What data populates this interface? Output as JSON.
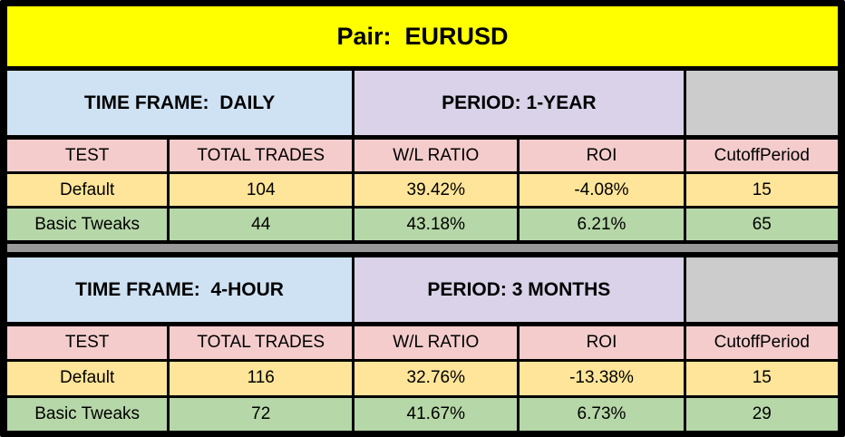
{
  "title": "Pair:  EURUSD",
  "colors": {
    "border": "#000000",
    "title_bg": "#ffff00",
    "timeframe_bg": "#cfe2f3",
    "period_bg": "#d9d2e9",
    "spacer_bg": "#cccccc",
    "header_bg": "#f4cccc",
    "row_default_bg": "#ffe599",
    "row_tweaks_bg": "#b6d7a8",
    "separator_bg": "#999999",
    "text": "#000000"
  },
  "sections": [
    {
      "time_frame_label": "TIME FRAME:  DAILY",
      "period_label": "PERIOD: 1-YEAR",
      "columns": [
        "TEST",
        "TOTAL TRADES",
        "W/L RATIO",
        "ROI",
        "CutoffPeriod"
      ],
      "rows": [
        {
          "test": "Default",
          "total_trades": "104",
          "wl_ratio": "39.42%",
          "roi": "-4.08%",
          "cutoff_period": "15"
        },
        {
          "test": "Basic Tweaks",
          "total_trades": "44",
          "wl_ratio": "43.18%",
          "roi": "6.21%",
          "cutoff_period": "65"
        }
      ]
    },
    {
      "time_frame_label": "TIME FRAME:  4-HOUR",
      "period_label": "PERIOD: 3 MONTHS",
      "columns": [
        "TEST",
        "TOTAL TRADES",
        "W/L RATIO",
        "ROI",
        "CutoffPeriod"
      ],
      "rows": [
        {
          "test": "Default",
          "total_trades": "116",
          "wl_ratio": "32.76%",
          "roi": "-13.38%",
          "cutoff_period": "15"
        },
        {
          "test": "Basic Tweaks",
          "total_trades": "72",
          "wl_ratio": "41.67%",
          "roi": "6.73%",
          "cutoff_period": "29"
        }
      ]
    }
  ]
}
